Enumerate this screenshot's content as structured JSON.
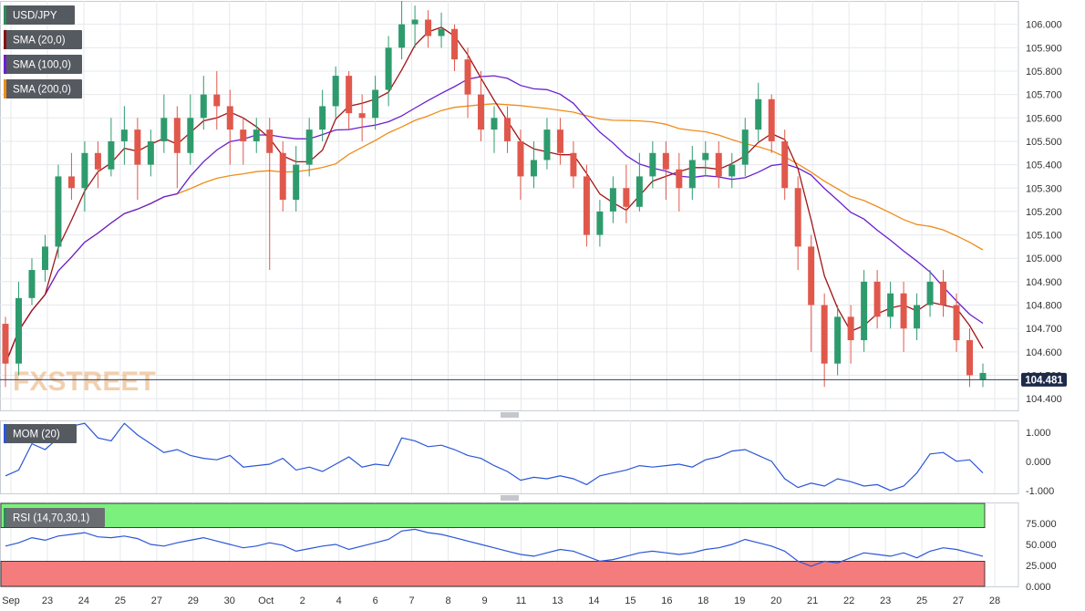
{
  "chart_data": {
    "type": "candlestick",
    "symbol": "USD/JPY",
    "watermark": "FXSTREET",
    "last_price": "104.481",
    "x_ticks": [
      "Sep",
      "23",
      "24",
      "25",
      "27",
      "29",
      "30",
      "Oct",
      "2",
      "4",
      "6",
      "7",
      "8",
      "9",
      "11",
      "13",
      "14",
      "15",
      "16",
      "18",
      "19",
      "20",
      "21",
      "22",
      "23",
      "25",
      "27",
      "28"
    ],
    "price_axis": {
      "ticks": [
        "106.000",
        "105.900",
        "105.800",
        "105.700",
        "105.600",
        "105.500",
        "105.400",
        "105.300",
        "105.200",
        "105.100",
        "105.000",
        "104.900",
        "104.800",
        "104.700",
        "104.600",
        "104.500",
        "104.400"
      ],
      "ylim": [
        104.35,
        106.1
      ]
    },
    "legend": [
      {
        "label": "SMA (20,0)",
        "color": "#8b1010"
      },
      {
        "label": "SMA (100,0)",
        "color": "#6a1fd0"
      },
      {
        "label": "SMA (200,0)",
        "color": "#f08c1a"
      }
    ],
    "colors": {
      "up": "#2e9b6d",
      "down": "#e0584c",
      "sma20": "#a01515",
      "sma100": "#6a1fd0",
      "sma200": "#f08c1a",
      "mom": "#2a56d8",
      "rsi": "#2a56d8",
      "overbought": "#7cf07c",
      "oversold": "#f47c7c"
    },
    "candles_ohlc_approx": [
      [
        104.72,
        104.55,
        104.75,
        104.45
      ],
      [
        104.55,
        104.83,
        104.9,
        104.5
      ],
      [
        104.83,
        104.95,
        105.0,
        104.8
      ],
      [
        104.95,
        105.05,
        105.1,
        104.9
      ],
      [
        105.05,
        105.35,
        105.4,
        105.0
      ],
      [
        105.35,
        105.3,
        105.45,
        105.25
      ],
      [
        105.3,
        105.45,
        105.5,
        105.2
      ],
      [
        105.45,
        105.38,
        105.5,
        105.3
      ],
      [
        105.38,
        105.5,
        105.6,
        105.35
      ],
      [
        105.5,
        105.55,
        105.65,
        105.4
      ],
      [
        105.55,
        105.4,
        105.6,
        105.25
      ],
      [
        105.4,
        105.5,
        105.55,
        105.35
      ],
      [
        105.5,
        105.6,
        105.7,
        105.45
      ],
      [
        105.6,
        105.45,
        105.65,
        105.3
      ],
      [
        105.45,
        105.6,
        105.7,
        105.4
      ],
      [
        105.6,
        105.7,
        105.78,
        105.55
      ],
      [
        105.7,
        105.65,
        105.8,
        105.55
      ],
      [
        105.65,
        105.55,
        105.72,
        105.4
      ],
      [
        105.55,
        105.5,
        105.6,
        105.4
      ],
      [
        105.5,
        105.55,
        105.6,
        105.45
      ],
      [
        105.55,
        105.45,
        105.6,
        104.95
      ],
      [
        105.45,
        105.25,
        105.5,
        105.2
      ],
      [
        105.25,
        105.4,
        105.48,
        105.2
      ],
      [
        105.4,
        105.55,
        105.6,
        105.35
      ],
      [
        105.55,
        105.65,
        105.72,
        105.5
      ],
      [
        105.65,
        105.78,
        105.82,
        105.6
      ],
      [
        105.78,
        105.62,
        105.8,
        105.55
      ],
      [
        105.62,
        105.6,
        105.7,
        105.5
      ],
      [
        105.6,
        105.72,
        105.78,
        105.55
      ],
      [
        105.72,
        105.9,
        105.95,
        105.65
      ],
      [
        105.9,
        106.0,
        106.1,
        105.85
      ],
      [
        106.0,
        106.02,
        106.08,
        105.9
      ],
      [
        106.02,
        105.95,
        106.06,
        105.9
      ],
      [
        105.95,
        105.98,
        106.05,
        105.9
      ],
      [
        105.98,
        105.85,
        106.0,
        105.8
      ],
      [
        105.85,
        105.7,
        105.9,
        105.6
      ],
      [
        105.7,
        105.55,
        105.8,
        105.5
      ],
      [
        105.55,
        105.6,
        105.65,
        105.45
      ],
      [
        105.6,
        105.5,
        105.65,
        105.45
      ],
      [
        105.5,
        105.35,
        105.55,
        105.25
      ],
      [
        105.35,
        105.42,
        105.5,
        105.3
      ],
      [
        105.42,
        105.55,
        105.6,
        105.38
      ],
      [
        105.55,
        105.45,
        105.6,
        105.4
      ],
      [
        105.45,
        105.35,
        105.5,
        105.3
      ],
      [
        105.35,
        105.1,
        105.4,
        105.05
      ],
      [
        105.1,
        105.2,
        105.25,
        105.05
      ],
      [
        105.2,
        105.3,
        105.35,
        105.15
      ],
      [
        105.3,
        105.22,
        105.4,
        105.15
      ],
      [
        105.22,
        105.35,
        105.45,
        105.2
      ],
      [
        105.35,
        105.45,
        105.5,
        105.3
      ],
      [
        105.45,
        105.38,
        105.5,
        105.25
      ],
      [
        105.38,
        105.3,
        105.45,
        105.2
      ],
      [
        105.3,
        105.42,
        105.48,
        105.25
      ],
      [
        105.42,
        105.45,
        105.5,
        105.35
      ],
      [
        105.45,
        105.35,
        105.5,
        105.3
      ],
      [
        105.35,
        105.4,
        105.45,
        105.3
      ],
      [
        105.4,
        105.55,
        105.6,
        105.35
      ],
      [
        105.55,
        105.68,
        105.75,
        105.5
      ],
      [
        105.68,
        105.5,
        105.7,
        105.45
      ],
      [
        105.5,
        105.3,
        105.55,
        105.25
      ],
      [
        105.3,
        105.05,
        105.35,
        104.95
      ],
      [
        105.05,
        104.8,
        105.1,
        104.6
      ],
      [
        104.8,
        104.55,
        104.85,
        104.45
      ],
      [
        104.55,
        104.75,
        104.8,
        104.5
      ],
      [
        104.75,
        104.65,
        104.8,
        104.55
      ],
      [
        104.65,
        104.9,
        104.95,
        104.6
      ],
      [
        104.9,
        104.75,
        104.95,
        104.7
      ],
      [
        104.75,
        104.85,
        104.9,
        104.7
      ],
      [
        104.85,
        104.7,
        104.9,
        104.6
      ],
      [
        104.7,
        104.8,
        104.85,
        104.65
      ],
      [
        104.8,
        104.9,
        104.95,
        104.75
      ],
      [
        104.9,
        104.8,
        104.95,
        104.75
      ],
      [
        104.8,
        104.65,
        104.85,
        104.6
      ],
      [
        104.65,
        104.5,
        104.7,
        104.45
      ],
      [
        104.48,
        104.51,
        104.55,
        104.45
      ]
    ],
    "mom_panel": {
      "label": "MOM (20)",
      "ticks": [
        "1.000",
        "0.000",
        "-1.000"
      ],
      "ylim": [
        -1.1,
        1.4
      ],
      "values": [
        -0.5,
        -0.3,
        0.6,
        0.4,
        0.8,
        1.2,
        1.3,
        0.8,
        0.7,
        1.3,
        0.9,
        0.6,
        0.3,
        0.4,
        0.2,
        0.1,
        0.05,
        0.2,
        -0.2,
        -0.15,
        -0.1,
        0.1,
        -0.3,
        -0.2,
        -0.35,
        -0.1,
        0.15,
        -0.2,
        -0.1,
        -0.15,
        0.8,
        0.7,
        0.5,
        0.55,
        0.4,
        0.2,
        0.1,
        -0.15,
        -0.35,
        -0.65,
        -0.55,
        -0.6,
        -0.5,
        -0.6,
        -0.8,
        -0.5,
        -0.4,
        -0.3,
        -0.15,
        -0.2,
        -0.15,
        -0.1,
        -0.2,
        0.05,
        0.15,
        0.35,
        0.4,
        0.2,
        0.0,
        -0.6,
        -0.9,
        -0.75,
        -0.85,
        -0.6,
        -0.7,
        -0.85,
        -0.8,
        -1.0,
        -0.85,
        -0.4,
        0.25,
        0.3,
        0.0,
        0.05,
        -0.4
      ]
    },
    "rsi_panel": {
      "label": "RSI (14,70,30,1)",
      "ticks": [
        "75.000",
        "50.000",
        "25.000",
        "0.000"
      ],
      "ylim": [
        0,
        100
      ],
      "levels": [
        70,
        30
      ],
      "values": [
        48,
        52,
        58,
        55,
        60,
        62,
        64,
        59,
        58,
        60,
        57,
        50,
        48,
        52,
        55,
        58,
        54,
        50,
        46,
        48,
        52,
        49,
        42,
        45,
        48,
        50,
        44,
        48,
        52,
        56,
        66,
        68,
        64,
        62,
        58,
        54,
        50,
        46,
        42,
        38,
        36,
        40,
        44,
        42,
        36,
        30,
        32,
        36,
        40,
        42,
        40,
        38,
        40,
        44,
        46,
        50,
        56,
        52,
        48,
        42,
        30,
        24,
        30,
        28,
        34,
        40,
        38,
        36,
        40,
        34,
        42,
        46,
        44,
        40,
        36
      ]
    }
  }
}
